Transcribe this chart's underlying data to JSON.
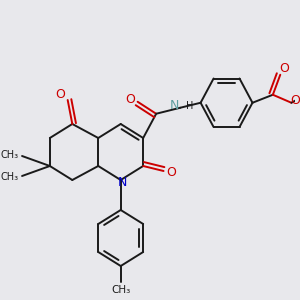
{
  "bg": "#e8e8ec",
  "bc": "#1a1a1a",
  "nc": "#0000cc",
  "oc": "#cc0000",
  "nhc": "#5f9ea0",
  "lw": 1.4
}
